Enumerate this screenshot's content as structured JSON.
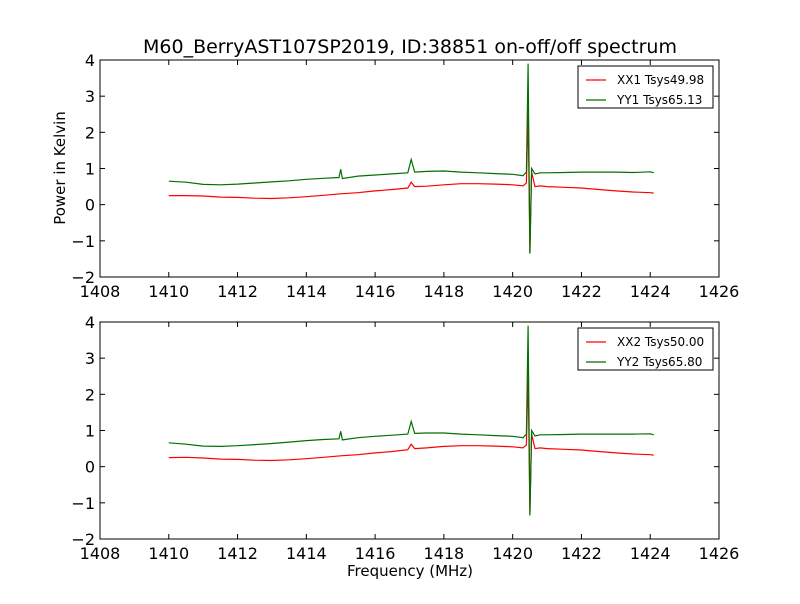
{
  "title": "M60_BerryAST107SP2019, ID:38851 on-off/off spectrum",
  "ylabel": "Power in Kelvin",
  "xlabel": "Frequency (MHz)",
  "colors": {
    "xx": "#ff0000",
    "yy": "#007000"
  },
  "chart_data": [
    {
      "type": "line",
      "xlim": [
        1408,
        1426
      ],
      "ylim": [
        -2,
        4
      ],
      "xticks": [
        1408,
        1410,
        1412,
        1414,
        1416,
        1418,
        1420,
        1422,
        1424,
        1426
      ],
      "yticks": [
        4,
        3,
        2,
        1,
        0,
        -1,
        -2
      ],
      "xtick_labels": [
        "1408",
        "1410",
        "1412",
        "1414",
        "1416",
        "1418",
        "1420",
        "1422",
        "1424",
        "1426"
      ],
      "ytick_labels": [
        "4",
        "3",
        "2",
        "1",
        "0",
        "−1",
        "−2"
      ],
      "legend_position": "top-right",
      "grid": false,
      "series": [
        {
          "name": "XX1 Tsys49.98",
          "color": "#ff0000",
          "x": [
            1410.0,
            1410.5,
            1411.0,
            1411.5,
            1412.0,
            1412.5,
            1413.0,
            1413.5,
            1414.0,
            1414.5,
            1415.0,
            1415.5,
            1416.0,
            1416.5,
            1416.95,
            1417.05,
            1417.15,
            1417.5,
            1418.0,
            1418.5,
            1419.0,
            1419.5,
            1420.0,
            1420.3,
            1420.4,
            1420.45,
            1420.5,
            1420.55,
            1420.65,
            1420.8,
            1421.0,
            1421.5,
            1422.0,
            1422.5,
            1423.0,
            1423.5,
            1424.0,
            1424.1
          ],
          "y": [
            0.25,
            0.25,
            0.24,
            0.21,
            0.2,
            0.18,
            0.17,
            0.19,
            0.22,
            0.26,
            0.3,
            0.33,
            0.38,
            0.42,
            0.46,
            0.62,
            0.5,
            0.51,
            0.55,
            0.58,
            0.58,
            0.57,
            0.55,
            0.52,
            0.6,
            2.6,
            -1.35,
            0.9,
            0.5,
            0.52,
            0.5,
            0.48,
            0.46,
            0.42,
            0.38,
            0.35,
            0.33,
            0.32
          ]
        },
        {
          "name": "YY1 Tsys65.13",
          "color": "#007000",
          "x": [
            1410.0,
            1410.5,
            1411.0,
            1411.5,
            1412.0,
            1412.5,
            1413.0,
            1413.5,
            1414.0,
            1414.5,
            1414.95,
            1415.0,
            1415.05,
            1415.5,
            1416.0,
            1416.5,
            1416.95,
            1417.05,
            1417.15,
            1417.5,
            1418.0,
            1418.5,
            1419.0,
            1419.5,
            1420.0,
            1420.3,
            1420.4,
            1420.45,
            1420.5,
            1420.55,
            1420.65,
            1420.8,
            1421.0,
            1421.5,
            1422.0,
            1422.5,
            1423.0,
            1423.5,
            1424.0,
            1424.1
          ],
          "y": [
            0.65,
            0.62,
            0.56,
            0.55,
            0.57,
            0.6,
            0.63,
            0.66,
            0.7,
            0.73,
            0.75,
            0.98,
            0.72,
            0.79,
            0.82,
            0.85,
            0.88,
            1.25,
            0.9,
            0.92,
            0.93,
            0.9,
            0.88,
            0.86,
            0.84,
            0.8,
            0.9,
            3.9,
            -1.35,
            1.0,
            0.85,
            0.88,
            0.88,
            0.89,
            0.9,
            0.9,
            0.9,
            0.89,
            0.91,
            0.88
          ]
        }
      ]
    },
    {
      "type": "line",
      "xlim": [
        1408,
        1426
      ],
      "ylim": [
        -2,
        4
      ],
      "xticks": [
        1408,
        1410,
        1412,
        1414,
        1416,
        1418,
        1420,
        1422,
        1424,
        1426
      ],
      "yticks": [
        4,
        3,
        2,
        1,
        0,
        -1,
        -2
      ],
      "xtick_labels": [
        "1408",
        "1410",
        "1412",
        "1414",
        "1416",
        "1418",
        "1420",
        "1422",
        "1424",
        "1426"
      ],
      "ytick_labels": [
        "4",
        "3",
        "2",
        "1",
        "0",
        "−1",
        "−2"
      ],
      "legend_position": "top-right",
      "grid": false,
      "series": [
        {
          "name": "XX2 Tsys50.00",
          "color": "#ff0000",
          "x": [
            1410.0,
            1410.5,
            1411.0,
            1411.5,
            1412.0,
            1412.5,
            1413.0,
            1413.5,
            1414.0,
            1414.5,
            1415.0,
            1415.5,
            1416.0,
            1416.5,
            1416.95,
            1417.05,
            1417.15,
            1417.5,
            1418.0,
            1418.5,
            1419.0,
            1419.5,
            1420.0,
            1420.3,
            1420.4,
            1420.45,
            1420.5,
            1420.55,
            1420.65,
            1420.8,
            1421.0,
            1421.5,
            1422.0,
            1422.5,
            1423.0,
            1423.5,
            1424.0,
            1424.1
          ],
          "y": [
            0.25,
            0.26,
            0.24,
            0.21,
            0.2,
            0.18,
            0.17,
            0.19,
            0.22,
            0.26,
            0.3,
            0.33,
            0.38,
            0.42,
            0.47,
            0.62,
            0.5,
            0.52,
            0.56,
            0.58,
            0.58,
            0.57,
            0.55,
            0.52,
            0.6,
            2.6,
            -1.3,
            0.9,
            0.5,
            0.52,
            0.5,
            0.48,
            0.46,
            0.42,
            0.38,
            0.35,
            0.33,
            0.32
          ]
        },
        {
          "name": "YY2 Tsys65.80",
          "color": "#007000",
          "x": [
            1410.0,
            1410.5,
            1411.0,
            1411.5,
            1412.0,
            1412.5,
            1413.0,
            1413.5,
            1414.0,
            1414.5,
            1414.95,
            1415.0,
            1415.05,
            1415.5,
            1416.0,
            1416.5,
            1416.95,
            1417.05,
            1417.15,
            1417.5,
            1418.0,
            1418.5,
            1419.0,
            1419.5,
            1420.0,
            1420.3,
            1420.4,
            1420.45,
            1420.5,
            1420.55,
            1420.65,
            1420.8,
            1421.0,
            1421.5,
            1422.0,
            1422.5,
            1423.0,
            1423.5,
            1424.0,
            1424.1
          ],
          "y": [
            0.66,
            0.62,
            0.57,
            0.56,
            0.58,
            0.61,
            0.64,
            0.68,
            0.72,
            0.75,
            0.77,
            0.98,
            0.74,
            0.8,
            0.84,
            0.87,
            0.9,
            1.25,
            0.92,
            0.93,
            0.93,
            0.9,
            0.88,
            0.86,
            0.84,
            0.8,
            0.9,
            3.9,
            -1.35,
            1.0,
            0.85,
            0.88,
            0.88,
            0.89,
            0.9,
            0.9,
            0.9,
            0.9,
            0.91,
            0.88
          ]
        }
      ]
    }
  ]
}
